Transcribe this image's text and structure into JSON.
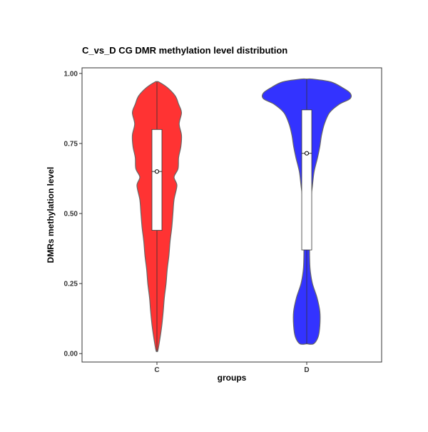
{
  "chart_data": {
    "type": "violin",
    "title": "C_vs_D  CG  DMR methylation level  distribution",
    "xlabel": "groups",
    "ylabel": "DMRs  methylation  level",
    "categories": [
      "C",
      "D"
    ],
    "ylim": [
      -0.03,
      1.02
    ],
    "yticks": [
      0.0,
      0.25,
      0.5,
      0.75,
      1.0
    ],
    "ytick_labels": [
      "0.00",
      "0.25",
      "0.50",
      "0.75",
      "1.00"
    ],
    "grid": false,
    "legend": "none",
    "series": [
      {
        "category": "C",
        "color": "#ff3333",
        "range": [
          0.01,
          0.97
        ],
        "box": {
          "q1": 0.44,
          "median": 0.65,
          "q3": 0.8,
          "mean": 0.65
        },
        "density": [
          [
            0.01,
            0.015
          ],
          [
            0.05,
            0.05
          ],
          [
            0.1,
            0.085
          ],
          [
            0.15,
            0.11
          ],
          [
            0.2,
            0.13
          ],
          [
            0.25,
            0.16
          ],
          [
            0.3,
            0.18
          ],
          [
            0.35,
            0.21
          ],
          [
            0.4,
            0.23
          ],
          [
            0.45,
            0.26
          ],
          [
            0.5,
            0.28
          ],
          [
            0.55,
            0.3
          ],
          [
            0.6,
            0.35
          ],
          [
            0.63,
            0.3
          ],
          [
            0.66,
            0.37
          ],
          [
            0.7,
            0.38
          ],
          [
            0.74,
            0.42
          ],
          [
            0.78,
            0.43
          ],
          [
            0.82,
            0.39
          ],
          [
            0.86,
            0.43
          ],
          [
            0.89,
            0.38
          ],
          [
            0.92,
            0.32
          ],
          [
            0.95,
            0.18
          ],
          [
            0.97,
            0.03
          ]
        ]
      },
      {
        "category": "D",
        "color": "#3333ff",
        "range": [
          0.035,
          0.98
        ],
        "box": {
          "q1": 0.37,
          "median": 0.715,
          "q3": 0.87,
          "mean": 0.715
        },
        "density": [
          [
            0.035,
            0.12
          ],
          [
            0.06,
            0.2
          ],
          [
            0.1,
            0.23
          ],
          [
            0.15,
            0.23
          ],
          [
            0.2,
            0.18
          ],
          [
            0.25,
            0.1
          ],
          [
            0.3,
            0.06
          ],
          [
            0.35,
            0.05
          ],
          [
            0.4,
            0.05
          ],
          [
            0.45,
            0.05
          ],
          [
            0.5,
            0.06
          ],
          [
            0.55,
            0.07
          ],
          [
            0.6,
            0.1
          ],
          [
            0.65,
            0.13
          ],
          [
            0.7,
            0.19
          ],
          [
            0.74,
            0.23
          ],
          [
            0.78,
            0.26
          ],
          [
            0.82,
            0.31
          ],
          [
            0.86,
            0.4
          ],
          [
            0.89,
            0.57
          ],
          [
            0.91,
            0.76
          ],
          [
            0.93,
            0.76
          ],
          [
            0.95,
            0.62
          ],
          [
            0.97,
            0.42
          ],
          [
            0.98,
            0.1
          ]
        ]
      }
    ]
  }
}
